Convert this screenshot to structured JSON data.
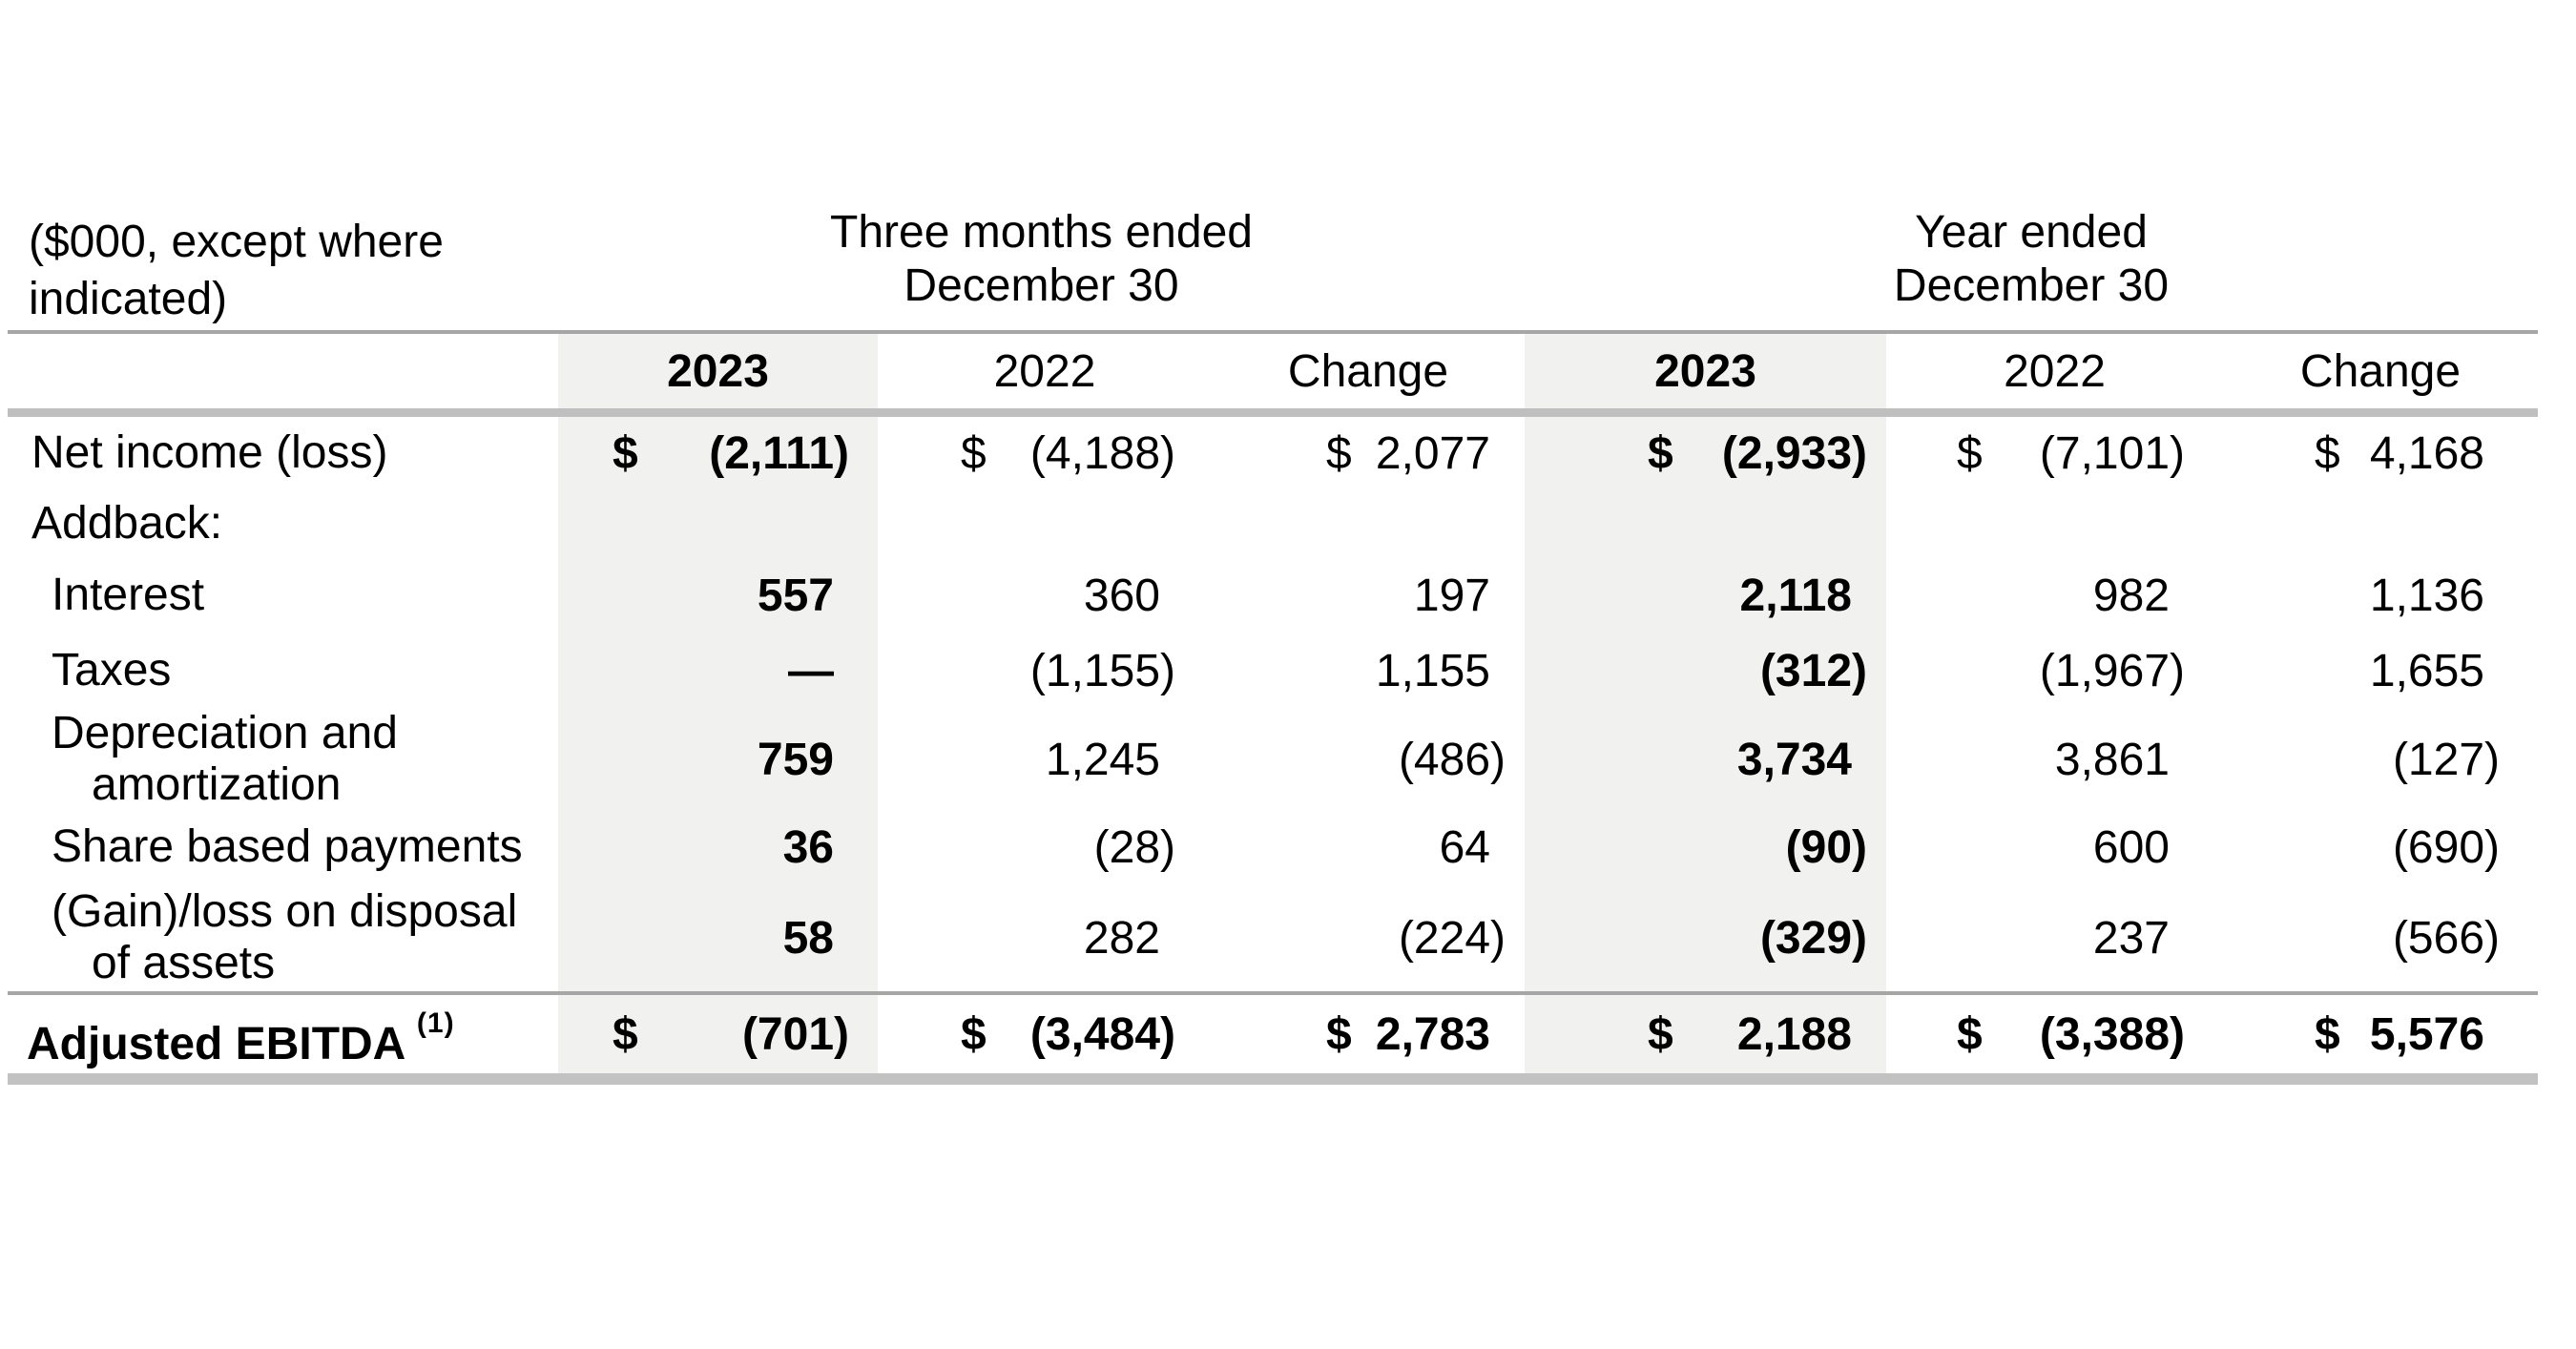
{
  "table": {
    "unit_note_lines": [
      "($000, except where",
      "indicated)"
    ],
    "currency_symbol": "$",
    "groups": [
      {
        "title_lines": [
          "Three months ended",
          "December 30"
        ]
      },
      {
        "title_lines": [
          "Year ended",
          "December 30"
        ]
      }
    ],
    "column_headers": [
      "2023",
      "2022",
      "Change",
      "2023",
      "2022",
      "Change"
    ],
    "rows": [
      {
        "label_lines": [
          "Net income (loss)"
        ],
        "values": [
          "(2,111)",
          "(4,188)",
          "2,077",
          "(2,933)",
          "(7,101)",
          "4,168"
        ]
      },
      {
        "label_lines": [
          "Addback:"
        ],
        "values": [
          "",
          "",
          "",
          "",
          "",
          ""
        ]
      },
      {
        "label_lines": [
          "Interest"
        ],
        "values": [
          "557",
          "360",
          "197",
          "2,118",
          "982",
          "1,136"
        ]
      },
      {
        "label_lines": [
          "Taxes"
        ],
        "values": [
          "—",
          "(1,155)",
          "1,155",
          "(312)",
          "(1,967)",
          "1,655"
        ]
      },
      {
        "label_lines": [
          "Depreciation and",
          "amortization"
        ],
        "values": [
          "759",
          "1,245",
          "(486)",
          "3,734",
          "3,861",
          "(127)"
        ]
      },
      {
        "label_lines": [
          "Share based payments"
        ],
        "values": [
          "36",
          "(28)",
          "64",
          "(90)",
          "600",
          "(690)"
        ]
      },
      {
        "label_lines": [
          "(Gain)/loss on disposal",
          "of assets"
        ],
        "values": [
          "58",
          "282",
          "(224)",
          "(329)",
          "237",
          "(566)"
        ]
      },
      {
        "label_lines": [
          "Adjusted EBITDA"
        ],
        "label_superscript": "(1)",
        "values": [
          "(701)",
          "(3,484)",
          "2,783",
          "2,188",
          "(3,388)",
          "5,576"
        ]
      }
    ]
  }
}
